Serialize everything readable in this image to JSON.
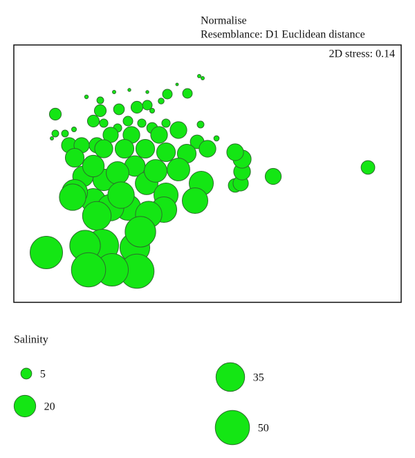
{
  "chart_data": {
    "type": "bubble",
    "notes": [
      "Normalise",
      "Resemblance: D1 Euclidean distance"
    ],
    "annotation": "2D stress: 0.14",
    "xlim": [
      0,
      560
    ],
    "ylim": [
      0,
      372
    ],
    "color": "#14e614",
    "x": [
      47,
      108,
      142,
      178,
      103,
      128,
      183,
      175,
      120,
      85,
      88,
      155,
      195,
      217,
      220,
      262,
      271,
      140,
      165,
      115,
      88,
      115,
      150,
      205,
      238,
      192,
      130,
      175,
      100,
      160,
      190,
      220,
      250,
      280,
      130,
      98,
      120,
      170,
      210,
      238,
      140,
      80,
      265,
      320,
      330,
      330,
      328,
      320,
      375,
      512,
      60,
      115,
      125,
      152,
      178,
      193,
      222,
      251,
      270,
      293,
      60,
      74,
      87,
      105,
      145,
      167,
      193,
      213,
      268,
      273,
      236,
      130,
      200,
      220,
      165,
      185,
      55,
      125,
      200,
      150
    ],
    "y": [
      72,
      47,
      47,
      45,
      82,
      82,
      102,
      79,
      125,
      152,
      159,
      155,
      127,
      134,
      155,
      147,
      172,
      137,
      137,
      147,
      209,
      197,
      187,
      190,
      192,
      172,
      177,
      197,
      182,
      222,
      222,
      217,
      215,
      222,
      222,
      227,
      227,
      242,
      242,
      249,
      242,
      227,
      232,
      217,
      207,
      189,
      172,
      169,
      182,
      195,
      272,
      262,
      277,
      279,
      282,
      285,
      301,
      302,
      257,
      237,
      244,
      244,
      250,
      297,
      304,
      307,
      304,
      291,
      327,
      324,
      315,
      259,
      252,
      259,
      262,
      259,
      237,
      292,
      277,
      252
    ],
    "sizes": [
      45,
      50,
      45,
      50,
      40,
      45,
      40,
      38,
      35,
      30,
      28,
      30,
      30,
      28,
      25,
      28,
      25,
      30,
      28,
      25,
      15,
      20,
      22,
      22,
      22,
      22,
      20,
      18,
      18,
      15,
      15,
      15,
      15,
      12,
      14,
      10,
      10,
      12,
      12,
      12,
      10,
      10,
      8,
      12,
      14,
      12,
      10,
      8,
      11,
      8,
      6,
      6,
      6,
      5,
      6,
      4,
      4,
      4,
      2,
      1.2,
      2,
      2,
      1,
      0.6,
      0.5,
      0.4,
      0.4,
      1.5,
      0.5,
      0.5,
      0.3,
      3,
      5,
      3,
      4,
      3,
      0.5,
      2,
      1,
      3
    ],
    "size_legend": {
      "title": "Salinity",
      "values": [
        5,
        20,
        35,
        50
      ]
    }
  }
}
